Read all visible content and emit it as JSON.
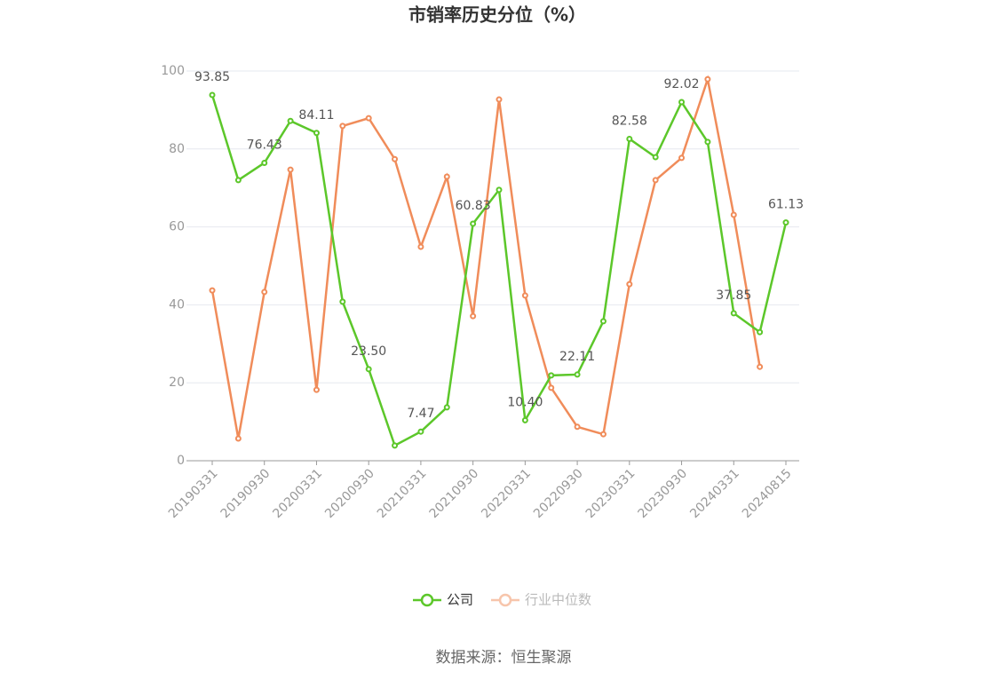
{
  "chart_data": {
    "type": "line",
    "title": "市销率历史分位（%）",
    "categories": [
      "20190331",
      null,
      "20190930",
      null,
      "20200331",
      null,
      "20200930",
      null,
      "20210331",
      null,
      "20210930",
      null,
      "20220331",
      null,
      "20220930",
      null,
      "20230331",
      null,
      "20230930",
      null,
      "20240331",
      null,
      "20240815"
    ],
    "series": [
      {
        "name": "公司",
        "color": "#5cc72a",
        "values": [
          93.85,
          72.0,
          76.43,
          87.2,
          84.11,
          40.8,
          23.5,
          3.9,
          7.47,
          13.7,
          60.83,
          69.5,
          10.4,
          21.9,
          22.11,
          35.8,
          82.58,
          77.9,
          92.02,
          81.8,
          37.85,
          33.0,
          61.13
        ],
        "value_labels": [
          "93.85",
          null,
          "76.43",
          null,
          "84.11",
          null,
          "23.50",
          null,
          "7.47",
          null,
          "60.83",
          null,
          "10.40",
          null,
          "22.11",
          null,
          "82.58",
          null,
          "92.02",
          null,
          "37.85",
          null,
          "61.13"
        ]
      },
      {
        "name": "行业中位数",
        "color": "#f08c5a",
        "values": [
          43.7,
          5.7,
          43.3,
          74.7,
          18.2,
          85.9,
          87.9,
          77.4,
          54.9,
          72.9,
          37.1,
          92.7,
          42.4,
          18.7,
          8.7,
          6.8,
          45.3,
          72.0,
          77.7,
          97.9,
          63.1,
          24.1,
          null
        ]
      }
    ],
    "ylim": [
      0,
      100
    ],
    "yticks": [
      0,
      20,
      40,
      60,
      80,
      100
    ],
    "grid": true,
    "legend": "bottom",
    "source": "数据来源：恒生聚源"
  }
}
